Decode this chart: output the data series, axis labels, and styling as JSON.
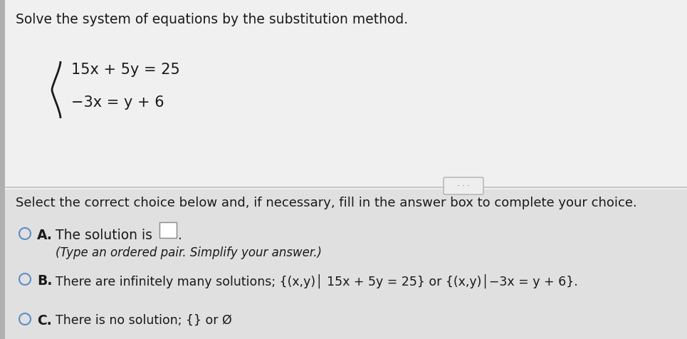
{
  "bg_color_top": "#f0f0f0",
  "bg_color_bottom": "#e0e0e0",
  "title": "Solve the system of equations by the substitution method.",
  "eq1": "15x + 5y = 25",
  "eq2": "−3x = y + 6",
  "divider_text": "· · ·",
  "prompt": "Select the correct choice below and, if necessary, fill in the answer box to complete your choice.",
  "choice_A_label": "A.",
  "choice_A_text1": "The solution is",
  "choice_A_text2": "(Type an ordered pair. Simplify your answer.)",
  "choice_B_label": "B.",
  "choice_B_text": "There are infinitely many solutions; {(x,y)│ 15x + 5y = 25} or {(x,y)│−3x = y + 6}.",
  "choice_C_label": "C.",
  "choice_C_text": "There is no solution; {} or Ø",
  "radio_color": "#5b8fc9",
  "text_color": "#1a1a1a",
  "left_bar_color": "#b0b0b0",
  "divider_color": "#c0c0c0",
  "title_fontsize": 13.5,
  "body_fontsize": 13.5,
  "small_fontsize": 12.0,
  "eq_fontsize": 15.0
}
